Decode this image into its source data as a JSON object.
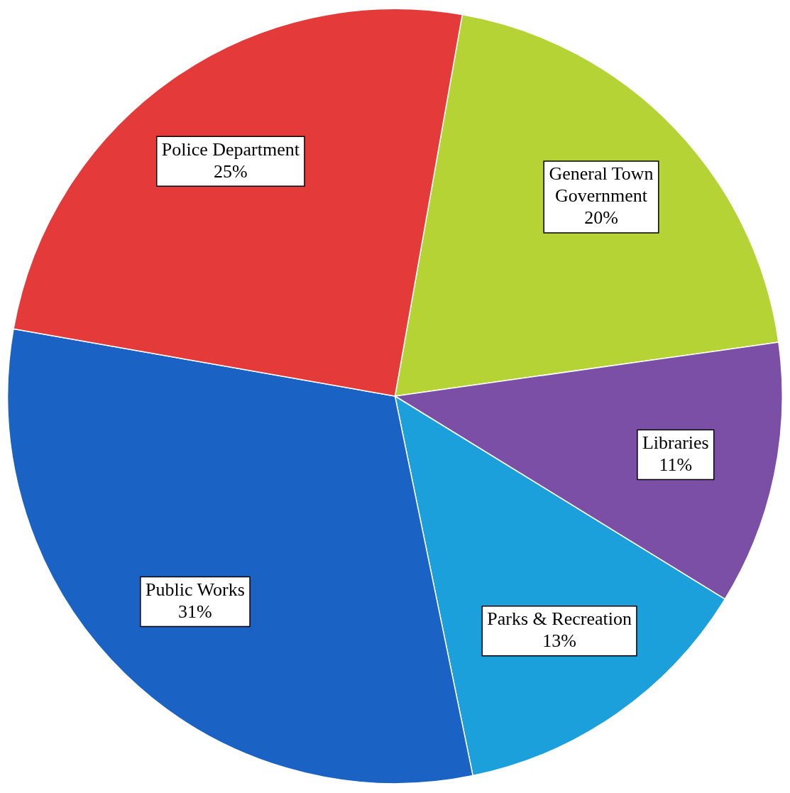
{
  "chart_data": {
    "type": "pie",
    "categories": [
      "General Town Government",
      "Libraries",
      "Parks & Recreation",
      "Public Works",
      "Police Department"
    ],
    "values": [
      20,
      11,
      13,
      31,
      25
    ],
    "value_labels": [
      "20%",
      "11%",
      "13%",
      "31%",
      "25%"
    ],
    "colors": [
      "#b5d334",
      "#7b4fa6",
      "#1ba0dc",
      "#1a62c4",
      "#e43a3a"
    ],
    "legend": false
  }
}
